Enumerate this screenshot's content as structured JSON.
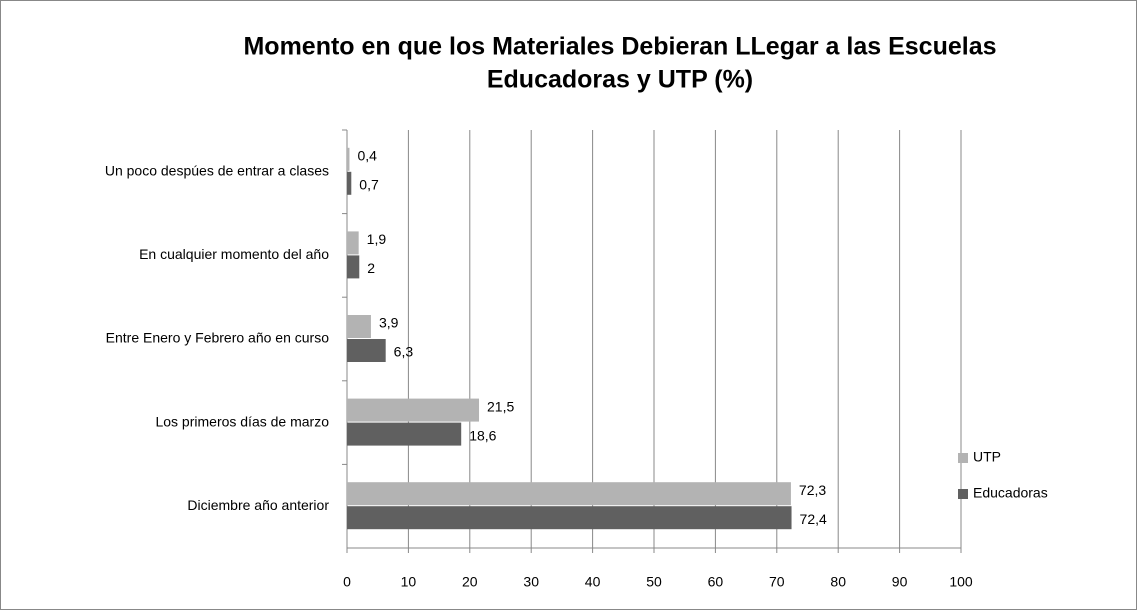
{
  "chart_data": {
    "type": "barh",
    "title": [
      "Momento en que los Materiales Debieran LLegar a las Escuelas",
      "Educadoras y UTP (%)"
    ],
    "categories": [
      "Un poco despúes de entrar a clases",
      "En cualquier momento del año",
      "Entre Enero y Febrero año en curso",
      "Los primeros días de marzo",
      "Diciembre año anterior"
    ],
    "series": [
      {
        "name": "UTP",
        "color": "#b3b3b3",
        "values": [
          0.4,
          1.9,
          3.9,
          21.5,
          72.3
        ],
        "value_labels": [
          "0,4",
          "1,9",
          "3,9",
          "21,5",
          "72,3"
        ]
      },
      {
        "name": "Educadoras",
        "color": "#606060",
        "values": [
          0.7,
          2,
          6.3,
          18.6,
          72.4
        ],
        "value_labels": [
          "0,7",
          "2",
          "6,3",
          "18,6",
          "72,4"
        ]
      }
    ],
    "xlim": [
      0,
      100
    ],
    "xticks": [
      0,
      10,
      20,
      30,
      40,
      50,
      60,
      70,
      80,
      90,
      100
    ],
    "grid": true,
    "legend": "right"
  }
}
